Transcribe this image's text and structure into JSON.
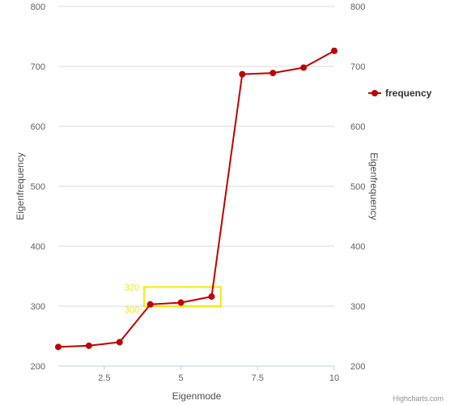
{
  "chart_data": {
    "type": "line",
    "title": "",
    "xlabel": "Eigenmode",
    "ylabel": "Eigenfrequency",
    "ylabel_right": "Eigenfrequency",
    "xlim": [
      1,
      10
    ],
    "ylim": [
      200,
      800
    ],
    "x_ticks": [
      "2.5",
      "5",
      "7.5",
      "10"
    ],
    "x_tick_values": [
      2.5,
      5,
      7.5,
      10
    ],
    "y_ticks": [
      "200",
      "300",
      "400",
      "500",
      "600",
      "700",
      "800"
    ],
    "y_tick_values": [
      200,
      300,
      400,
      500,
      600,
      700,
      800
    ],
    "grid": true,
    "legend_position": "right",
    "series": [
      {
        "name": "frequency",
        "color": "#c00000",
        "x": [
          1,
          2,
          3,
          4,
          5,
          6,
          7,
          8,
          9,
          10
        ],
        "values": [
          232,
          234,
          240,
          303,
          306,
          316,
          687,
          689,
          698,
          726
        ]
      }
    ],
    "highlight_band": {
      "x_from": 3.8,
      "x_to": 6.3,
      "y_from": 300,
      "y_to": 332,
      "label_low": "300",
      "label_high": "320",
      "color": "#f5e90a"
    }
  },
  "credits": "Highcharts.com"
}
